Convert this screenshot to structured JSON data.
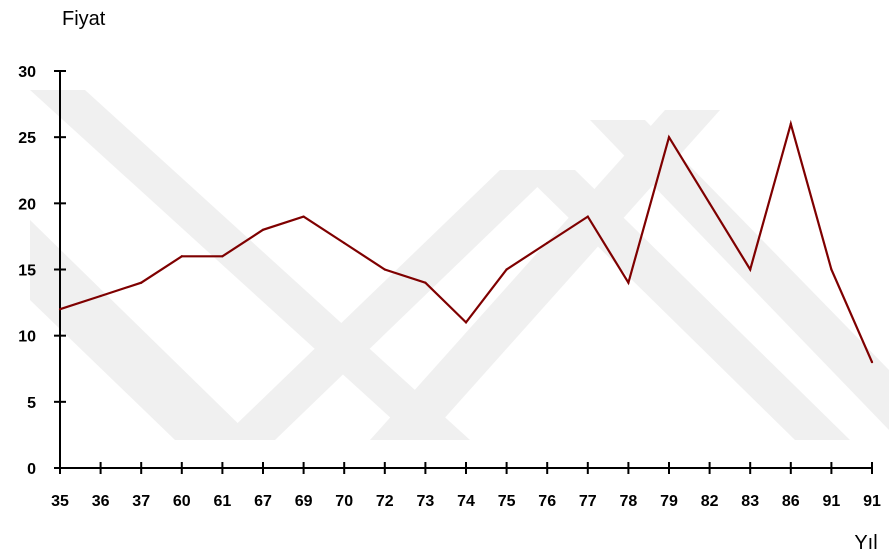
{
  "chart_data": {
    "type": "line",
    "ylabel": "Fiyat",
    "xlabel": "Yıl",
    "categories": [
      "35",
      "36",
      "37",
      "60",
      "61",
      "67",
      "69",
      "70",
      "72",
      "73",
      "74",
      "75",
      "76",
      "77",
      "78",
      "79",
      "82",
      "83",
      "86",
      "91",
      "91"
    ],
    "series": [
      {
        "values": [
          12,
          13,
          14,
          16,
          16,
          18,
          19,
          17,
          15,
          14,
          11,
          15,
          17,
          19,
          14,
          25,
          20,
          15,
          26,
          15,
          8
        ],
        "color": "#7f0000"
      }
    ],
    "ylim": [
      0,
      30
    ],
    "yticks": [
      0,
      5,
      10,
      15,
      20,
      25,
      30
    ],
    "grid": false,
    "legend": "none"
  }
}
